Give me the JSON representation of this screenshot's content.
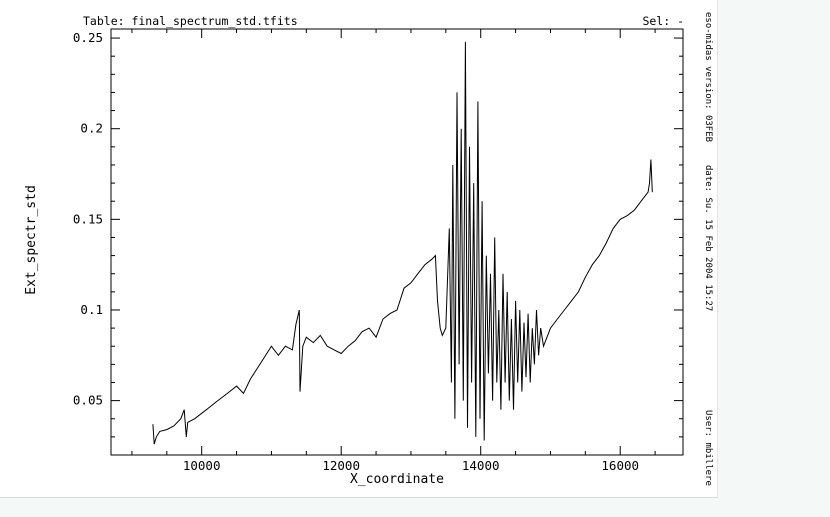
{
  "header": {
    "table_label": "Table: final_spectrum_std.tfits",
    "sel_label": "Sel: -"
  },
  "side_info": {
    "version": "eso-midas version: 03FEB",
    "date": "date: Su. 15 Feb 2004 15:27",
    "user": "User: mbillere"
  },
  "chart_data": {
    "type": "line",
    "title": "",
    "xlabel": "X_coordinate",
    "ylabel": "Ext_spectr_std",
    "xlim": [
      8700,
      16900
    ],
    "ylim": [
      0.02,
      0.255
    ],
    "x_ticks": [
      10000,
      12000,
      14000,
      16000
    ],
    "y_ticks": [
      0.05,
      0.1,
      0.15,
      0.2,
      0.25
    ],
    "x_tick_labels": [
      "10000",
      "12000",
      "14000",
      "16000"
    ],
    "y_tick_labels": [
      "0.05",
      "0.1",
      "0.15",
      "0.2",
      "0.25"
    ],
    "grid": false,
    "series": [
      {
        "color": "#000000",
        "x": [
          9300,
          9320,
          9350,
          9400,
          9500,
          9600,
          9700,
          9750,
          9780,
          9800,
          9900,
          10000,
          10100,
          10200,
          10300,
          10400,
          10500,
          10600,
          10700,
          10800,
          10900,
          11000,
          11100,
          11200,
          11300,
          11350,
          11400,
          11410,
          11450,
          11500,
          11600,
          11700,
          11800,
          11900,
          12000,
          12100,
          12200,
          12300,
          12400,
          12500,
          12600,
          12700,
          12800,
          12900,
          13000,
          13100,
          13200,
          13300,
          13350,
          13380,
          13420,
          13450,
          13500,
          13550,
          13580,
          13600,
          13630,
          13660,
          13690,
          13720,
          13750,
          13780,
          13810,
          13840,
          13870,
          13900,
          13930,
          13960,
          13990,
          14020,
          14050,
          14080,
          14110,
          14140,
          14170,
          14200,
          14230,
          14260,
          14290,
          14320,
          14350,
          14380,
          14410,
          14440,
          14470,
          14500,
          14530,
          14560,
          14590,
          14620,
          14650,
          14680,
          14710,
          14740,
          14770,
          14800,
          14830,
          14860,
          14900,
          14950,
          15000,
          15100,
          15200,
          15300,
          15400,
          15500,
          15600,
          15700,
          15800,
          15900,
          16000,
          16100,
          16200,
          16300,
          16400,
          16420,
          16440,
          16460
        ],
        "y": [
          0.037,
          0.026,
          0.03,
          0.033,
          0.034,
          0.036,
          0.04,
          0.045,
          0.03,
          0.038,
          0.04,
          0.043,
          0.046,
          0.049,
          0.052,
          0.055,
          0.058,
          0.054,
          0.062,
          0.068,
          0.074,
          0.08,
          0.075,
          0.08,
          0.078,
          0.092,
          0.1,
          0.055,
          0.08,
          0.085,
          0.082,
          0.086,
          0.08,
          0.078,
          0.076,
          0.08,
          0.083,
          0.088,
          0.09,
          0.085,
          0.095,
          0.098,
          0.1,
          0.112,
          0.115,
          0.12,
          0.125,
          0.128,
          0.13,
          0.105,
          0.09,
          0.086,
          0.09,
          0.145,
          0.06,
          0.18,
          0.04,
          0.22,
          0.07,
          0.2,
          0.05,
          0.248,
          0.035,
          0.19,
          0.06,
          0.17,
          0.03,
          0.215,
          0.04,
          0.16,
          0.028,
          0.13,
          0.065,
          0.12,
          0.05,
          0.14,
          0.06,
          0.1,
          0.045,
          0.12,
          0.06,
          0.11,
          0.05,
          0.095,
          0.045,
          0.105,
          0.06,
          0.1,
          0.055,
          0.093,
          0.063,
          0.098,
          0.06,
          0.09,
          0.07,
          0.1,
          0.075,
          0.09,
          0.08,
          0.085,
          0.09,
          0.095,
          0.1,
          0.105,
          0.11,
          0.118,
          0.125,
          0.13,
          0.137,
          0.145,
          0.15,
          0.152,
          0.155,
          0.16,
          0.165,
          0.17,
          0.183,
          0.165
        ]
      }
    ]
  }
}
